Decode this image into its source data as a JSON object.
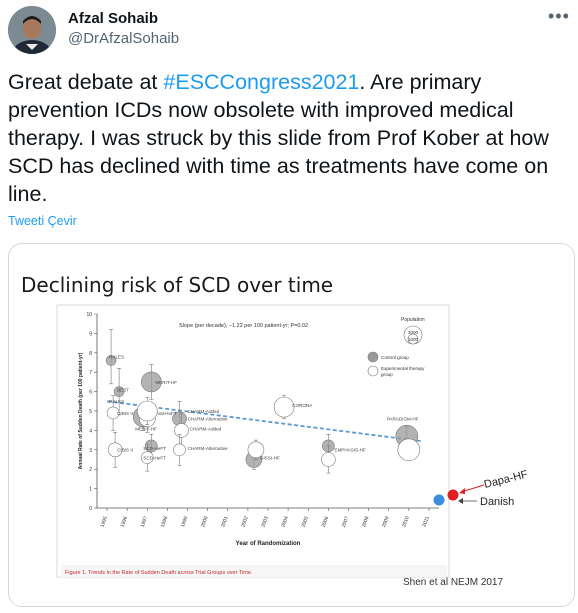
{
  "user": {
    "name": "Afzal Sohaib",
    "handle": "@DrAfzalSohaib"
  },
  "menu_icon": "more-horizontal-icon",
  "tweet": {
    "text_before": "Great debate at ",
    "hashtag": "#ESCCongress2021",
    "text_after": ".  Are primary prevention ICDs now obsolete with improved medical therapy.  I was struck by this slide from Prof Kober at how SCD has declined with time as treatments have come on line.",
    "translate": "Tweeti Çevir"
  },
  "slide": {
    "title": "Declining risk of SCD over time",
    "citation": "Shen et al NEJM 2017",
    "added_labels": [
      "Dapa-HF",
      "Danish"
    ],
    "added_colors": {
      "Dapa-HF": "#e02020",
      "Danish": "#3a8ee0"
    }
  },
  "chart_data": {
    "type": "scatter",
    "subtitle": "Slope (per decade), −1.22 per 100 patient-yr; P=0.02",
    "xlabel": "Year of Randomization",
    "ylabel": "Annual Rate of Sudden Death (per 100 patient-yr)",
    "x_ticks": [
      "1995",
      "1996",
      "1997",
      "1998",
      "1999",
      "2000",
      "2001",
      "2002",
      "2003",
      "2004",
      "2005",
      "2006",
      "2007",
      "2008",
      "2009",
      "2010",
      "2011"
    ],
    "xlim": [
      1994.5,
      2011.5
    ],
    "ylim": [
      0,
      10
    ],
    "y_ticks": [
      0,
      1,
      2,
      3,
      4,
      5,
      6,
      7,
      8,
      9,
      10
    ],
    "legend": {
      "title": "Population",
      "sizes": [
        "3000",
        "1000"
      ],
      "entries": [
        "Control group",
        "Experimental therapy group"
      ],
      "position": "top-right"
    },
    "trend": {
      "x": [
        1995,
        2010.6
      ],
      "y": [
        5.5,
        3.45
      ]
    },
    "series": [
      {
        "name": "Control group",
        "color": "#9a9a9a",
        "points": [
          {
            "label": "RALES",
            "x": 1995.2,
            "y": 7.6,
            "r": 5,
            "lo": 6.4,
            "hi": 9.2
          },
          {
            "label": "BEST",
            "x": 1995.6,
            "y": 6.0,
            "r": 5,
            "lo": 4.8,
            "hi": 7.2
          },
          {
            "label": "MERIT-HF",
            "x": 1997.2,
            "y": 6.5,
            "r": 10,
            "lo": 5.6,
            "hi": 7.4
          },
          {
            "label": "Val-HeFT",
            "x": 1996.8,
            "y": 4.7,
            "r": 10,
            "lo": 4.0,
            "hi": 5.4
          },
          {
            "label": "CHARM-Added",
            "x": 1998.6,
            "y": 4.6,
            "r": 7,
            "lo": 3.7,
            "hi": 5.5
          },
          {
            "label": "SCD-HeFT",
            "x": 1997.2,
            "y": 3.2,
            "r": 6,
            "lo": 2.6,
            "hi": 3.8
          },
          {
            "label": "GISSI-HF",
            "x": 2002.3,
            "y": 2.5,
            "r": 8,
            "lo": 2.0,
            "hi": 3.0
          },
          {
            "label": "EMPHASIS-HF",
            "x": 2006.0,
            "y": 3.2,
            "r": 6,
            "lo": 2.6,
            "hi": 3.8
          },
          {
            "label": "PARADIGM-HF",
            "x": 2009.9,
            "y": 3.7,
            "r": 11,
            "lo": 3.2,
            "hi": 4.2
          }
        ]
      },
      {
        "name": "Experimental therapy group",
        "color": "#ffffff",
        "points": [
          {
            "label": "CIBIS II",
            "x": 1995.3,
            "y": 4.9,
            "r": 6,
            "lo": 4.0,
            "hi": 5.8
          },
          {
            "label": "CIBIS II",
            "x": 1995.4,
            "y": 3.0,
            "r": 7,
            "lo": 2.1,
            "hi": 3.9
          },
          {
            "label": "MERIT-HF",
            "x": 1997.0,
            "y": 4.6,
            "r": 8,
            "lo": 3.9,
            "hi": 5.3
          },
          {
            "label": "Val-HeFT",
            "x": 1997.0,
            "y": 5.0,
            "r": 10,
            "lo": 4.3,
            "hi": 5.7
          },
          {
            "label": "CHARM-Alternative",
            "x": 1998.7,
            "y": 4.0,
            "r": 7,
            "lo": 3.1,
            "hi": 4.9
          },
          {
            "label": "CHARM-Alternative",
            "x": 1998.6,
            "y": 3.0,
            "r": 6,
            "lo": 2.2,
            "hi": 3.8
          },
          {
            "label": "SCD-HeFT",
            "x": 1997.0,
            "y": 2.6,
            "r": 6,
            "lo": 1.9,
            "hi": 3.3
          },
          {
            "label": "CORONA",
            "x": 2003.8,
            "y": 5.2,
            "r": 10,
            "lo": 4.6,
            "hi": 5.8
          },
          {
            "label": "GISSI-HF",
            "x": 2002.4,
            "y": 3.0,
            "r": 8,
            "lo": 2.5,
            "hi": 3.5
          },
          {
            "label": "EMPHASIS-HF",
            "x": 2006.0,
            "y": 2.5,
            "r": 7,
            "lo": 1.8,
            "hi": 3.2
          },
          {
            "label": "PARADIGM-HF",
            "x": 2010.0,
            "y": 3.0,
            "r": 11,
            "lo": 2.5,
            "hi": 3.5
          }
        ]
      }
    ],
    "added_points": [
      {
        "label": "Dapa-HF",
        "x": 2011.6,
        "y": 2.2,
        "color": "#e02020"
      },
      {
        "label": "Danish",
        "x": 2011.1,
        "y": 2.05,
        "color": "#3a8ee0"
      }
    ],
    "point_labels": [
      {
        "text": "RALES",
        "x": 1995.1,
        "y": 7.7
      },
      {
        "text": "BEST",
        "x": 1995.5,
        "y": 6.0
      },
      {
        "text": "RALES",
        "x": 1995.1,
        "y": 5.4
      },
      {
        "text": "CIBIS II",
        "x": 1995.5,
        "y": 4.8
      },
      {
        "text": "MERIT-HF",
        "x": 1997.4,
        "y": 6.4
      },
      {
        "text": "Val-HeFT",
        "x": 1997.5,
        "y": 4.8
      },
      {
        "text": "MERIT-HF",
        "x": 1996.4,
        "y": 4.0
      },
      {
        "text": "CIBIS II",
        "x": 1995.5,
        "y": 2.9
      },
      {
        "text": "SCD-HeFT",
        "x": 1996.8,
        "y": 3.0
      },
      {
        "text": "SCD-HeFT",
        "x": 1996.8,
        "y": 2.5
      },
      {
        "text": "CHARM-Added",
        "x": 1999.0,
        "y": 4.9
      },
      {
        "text": "CHARM-Alternative",
        "x": 1999.0,
        "y": 4.5
      },
      {
        "text": "CHARM-Added",
        "x": 1999.1,
        "y": 4.0
      },
      {
        "text": "CHARM-Alternative",
        "x": 1999.0,
        "y": 3.0
      },
      {
        "text": "CORONA",
        "x": 2004.2,
        "y": 5.2
      },
      {
        "text": "GISSI-HF",
        "x": 2002.6,
        "y": 2.5
      },
      {
        "text": "EMPHASIS-HF",
        "x": 2006.3,
        "y": 2.9
      },
      {
        "text": "PARADIGM-HF",
        "x": 2008.9,
        "y": 4.5
      }
    ],
    "figure_caption": "Figure 1. Trends in the Rate of Sudden Death across Trial Groups over Time."
  }
}
